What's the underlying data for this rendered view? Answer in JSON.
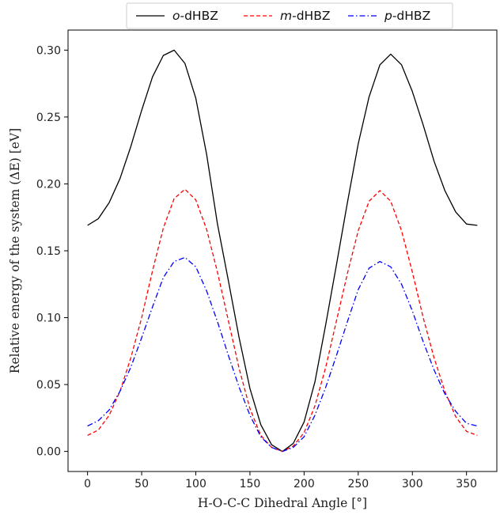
{
  "chart_data": {
    "type": "line",
    "xlabel": "H-O-C-C Dihedral Angle [°]",
    "ylabel": "Relative energy of the system (ΔE) [eV]",
    "xlim": [
      -18,
      378
    ],
    "ylim": [
      -0.015,
      0.315
    ],
    "xticks": [
      0,
      50,
      100,
      150,
      200,
      250,
      300,
      350
    ],
    "yticks": [
      0.0,
      0.05,
      0.1,
      0.15,
      0.2,
      0.25,
      0.3
    ],
    "xtick_labels": [
      "0",
      "50",
      "100",
      "150",
      "200",
      "250",
      "300",
      "350"
    ],
    "ytick_labels": [
      "0.00",
      "0.05",
      "0.10",
      "0.15",
      "0.20",
      "0.25",
      "0.30"
    ],
    "grid": false,
    "legend_position": "top-center, above plot",
    "x": [
      0,
      10,
      20,
      30,
      40,
      50,
      60,
      70,
      80,
      90,
      100,
      110,
      120,
      130,
      140,
      150,
      160,
      170,
      180,
      190,
      200,
      210,
      220,
      230,
      240,
      250,
      260,
      270,
      280,
      290,
      300,
      310,
      320,
      330,
      340,
      350,
      360
    ],
    "series": [
      {
        "name": "o-dHBZ",
        "name_italic": "o",
        "name_rest": "-dHBZ",
        "color": "#000000",
        "dash": "solid",
        "values": [
          0.169,
          0.174,
          0.186,
          0.204,
          0.228,
          0.255,
          0.28,
          0.296,
          0.3,
          0.29,
          0.264,
          0.222,
          0.17,
          0.128,
          0.085,
          0.047,
          0.02,
          0.005,
          0.0,
          0.006,
          0.022,
          0.052,
          0.095,
          0.14,
          0.186,
          0.23,
          0.265,
          0.289,
          0.297,
          0.289,
          0.269,
          0.244,
          0.217,
          0.195,
          0.179,
          0.17,
          0.169
        ]
      },
      {
        "name": "m-dHBZ",
        "name_italic": "m",
        "name_rest": "-dHBZ",
        "color": "#ff0000",
        "dash": "dashed",
        "values": [
          0.012,
          0.016,
          0.027,
          0.045,
          0.07,
          0.1,
          0.135,
          0.167,
          0.189,
          0.196,
          0.188,
          0.166,
          0.134,
          0.098,
          0.062,
          0.032,
          0.012,
          0.003,
          0.0,
          0.004,
          0.014,
          0.034,
          0.063,
          0.098,
          0.133,
          0.165,
          0.187,
          0.195,
          0.187,
          0.165,
          0.134,
          0.1,
          0.07,
          0.045,
          0.026,
          0.015,
          0.012
        ]
      },
      {
        "name": "p-dHBZ",
        "name_italic": "p",
        "name_rest": "-dHBZ",
        "color": "#0000ff",
        "dash": "dashdot",
        "values": [
          0.019,
          0.023,
          0.031,
          0.045,
          0.063,
          0.085,
          0.108,
          0.13,
          0.142,
          0.145,
          0.138,
          0.12,
          0.097,
          0.072,
          0.048,
          0.027,
          0.011,
          0.003,
          0.0,
          0.003,
          0.011,
          0.027,
          0.048,
          0.072,
          0.097,
          0.121,
          0.137,
          0.142,
          0.138,
          0.125,
          0.105,
          0.082,
          0.061,
          0.043,
          0.03,
          0.021,
          0.019
        ]
      }
    ]
  }
}
